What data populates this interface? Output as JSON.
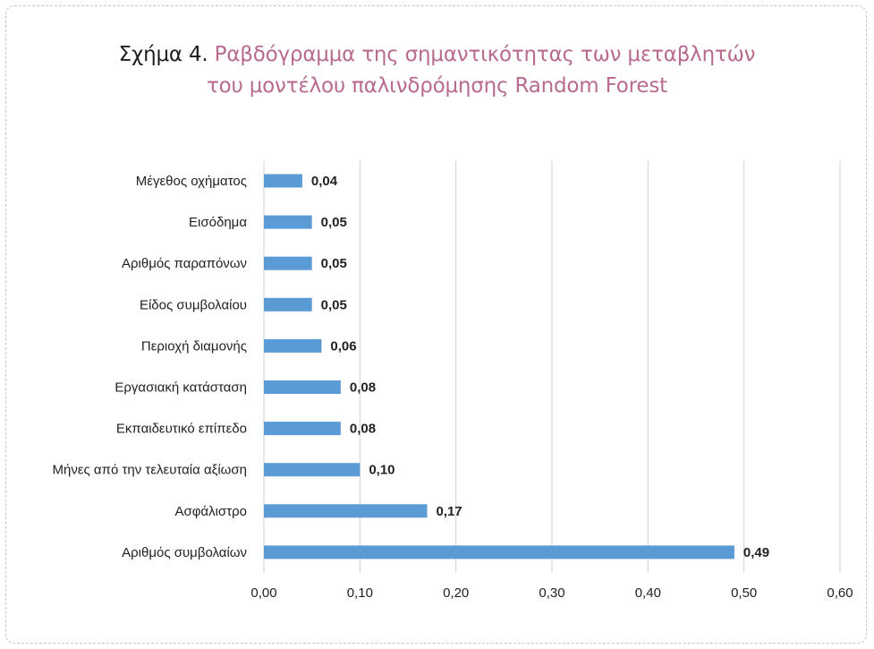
{
  "title": {
    "prefix": "Σχήμα 4.",
    "line1": "Ραβδόγραμμα της σημαντικότητας των μεταβλητών",
    "line2": "του μοντέλου παλινδρόμησης Random Forest"
  },
  "colors": {
    "bar": "#5b9bd5",
    "title_accent": "#b86a8f",
    "gridline": "#d0d0d0"
  },
  "chart_data": {
    "type": "bar",
    "orientation": "horizontal",
    "categories": [
      "Μέγεθος οχήματος",
      "Εισόδημα",
      "Αριθμός παραπόνων",
      "Είδος συμβολαίου",
      "Περιοχή διαμονής",
      "Εργασιακή κατάσταση",
      "Εκπαιδευτικό επίπεδο",
      "Μήνες από την τελευταία αξίωση",
      "Ασφάλιστρο",
      "Αριθμός συμβολαίων"
    ],
    "values": [
      0.04,
      0.05,
      0.05,
      0.05,
      0.06,
      0.08,
      0.08,
      0.1,
      0.17,
      0.49
    ],
    "value_labels": [
      "0,04",
      "0,05",
      "0,05",
      "0,05",
      "0,06",
      "0,08",
      "0,08",
      "0,10",
      "0,17",
      "0,49"
    ],
    "xlim": [
      0,
      0.6
    ],
    "xticks": [
      0,
      0.1,
      0.2,
      0.3,
      0.4,
      0.5,
      0.6
    ],
    "xtick_labels": [
      "0,00",
      "0,10",
      "0,20",
      "0,30",
      "0,40",
      "0,50",
      "0,60"
    ],
    "grid": true,
    "legend": "none"
  }
}
